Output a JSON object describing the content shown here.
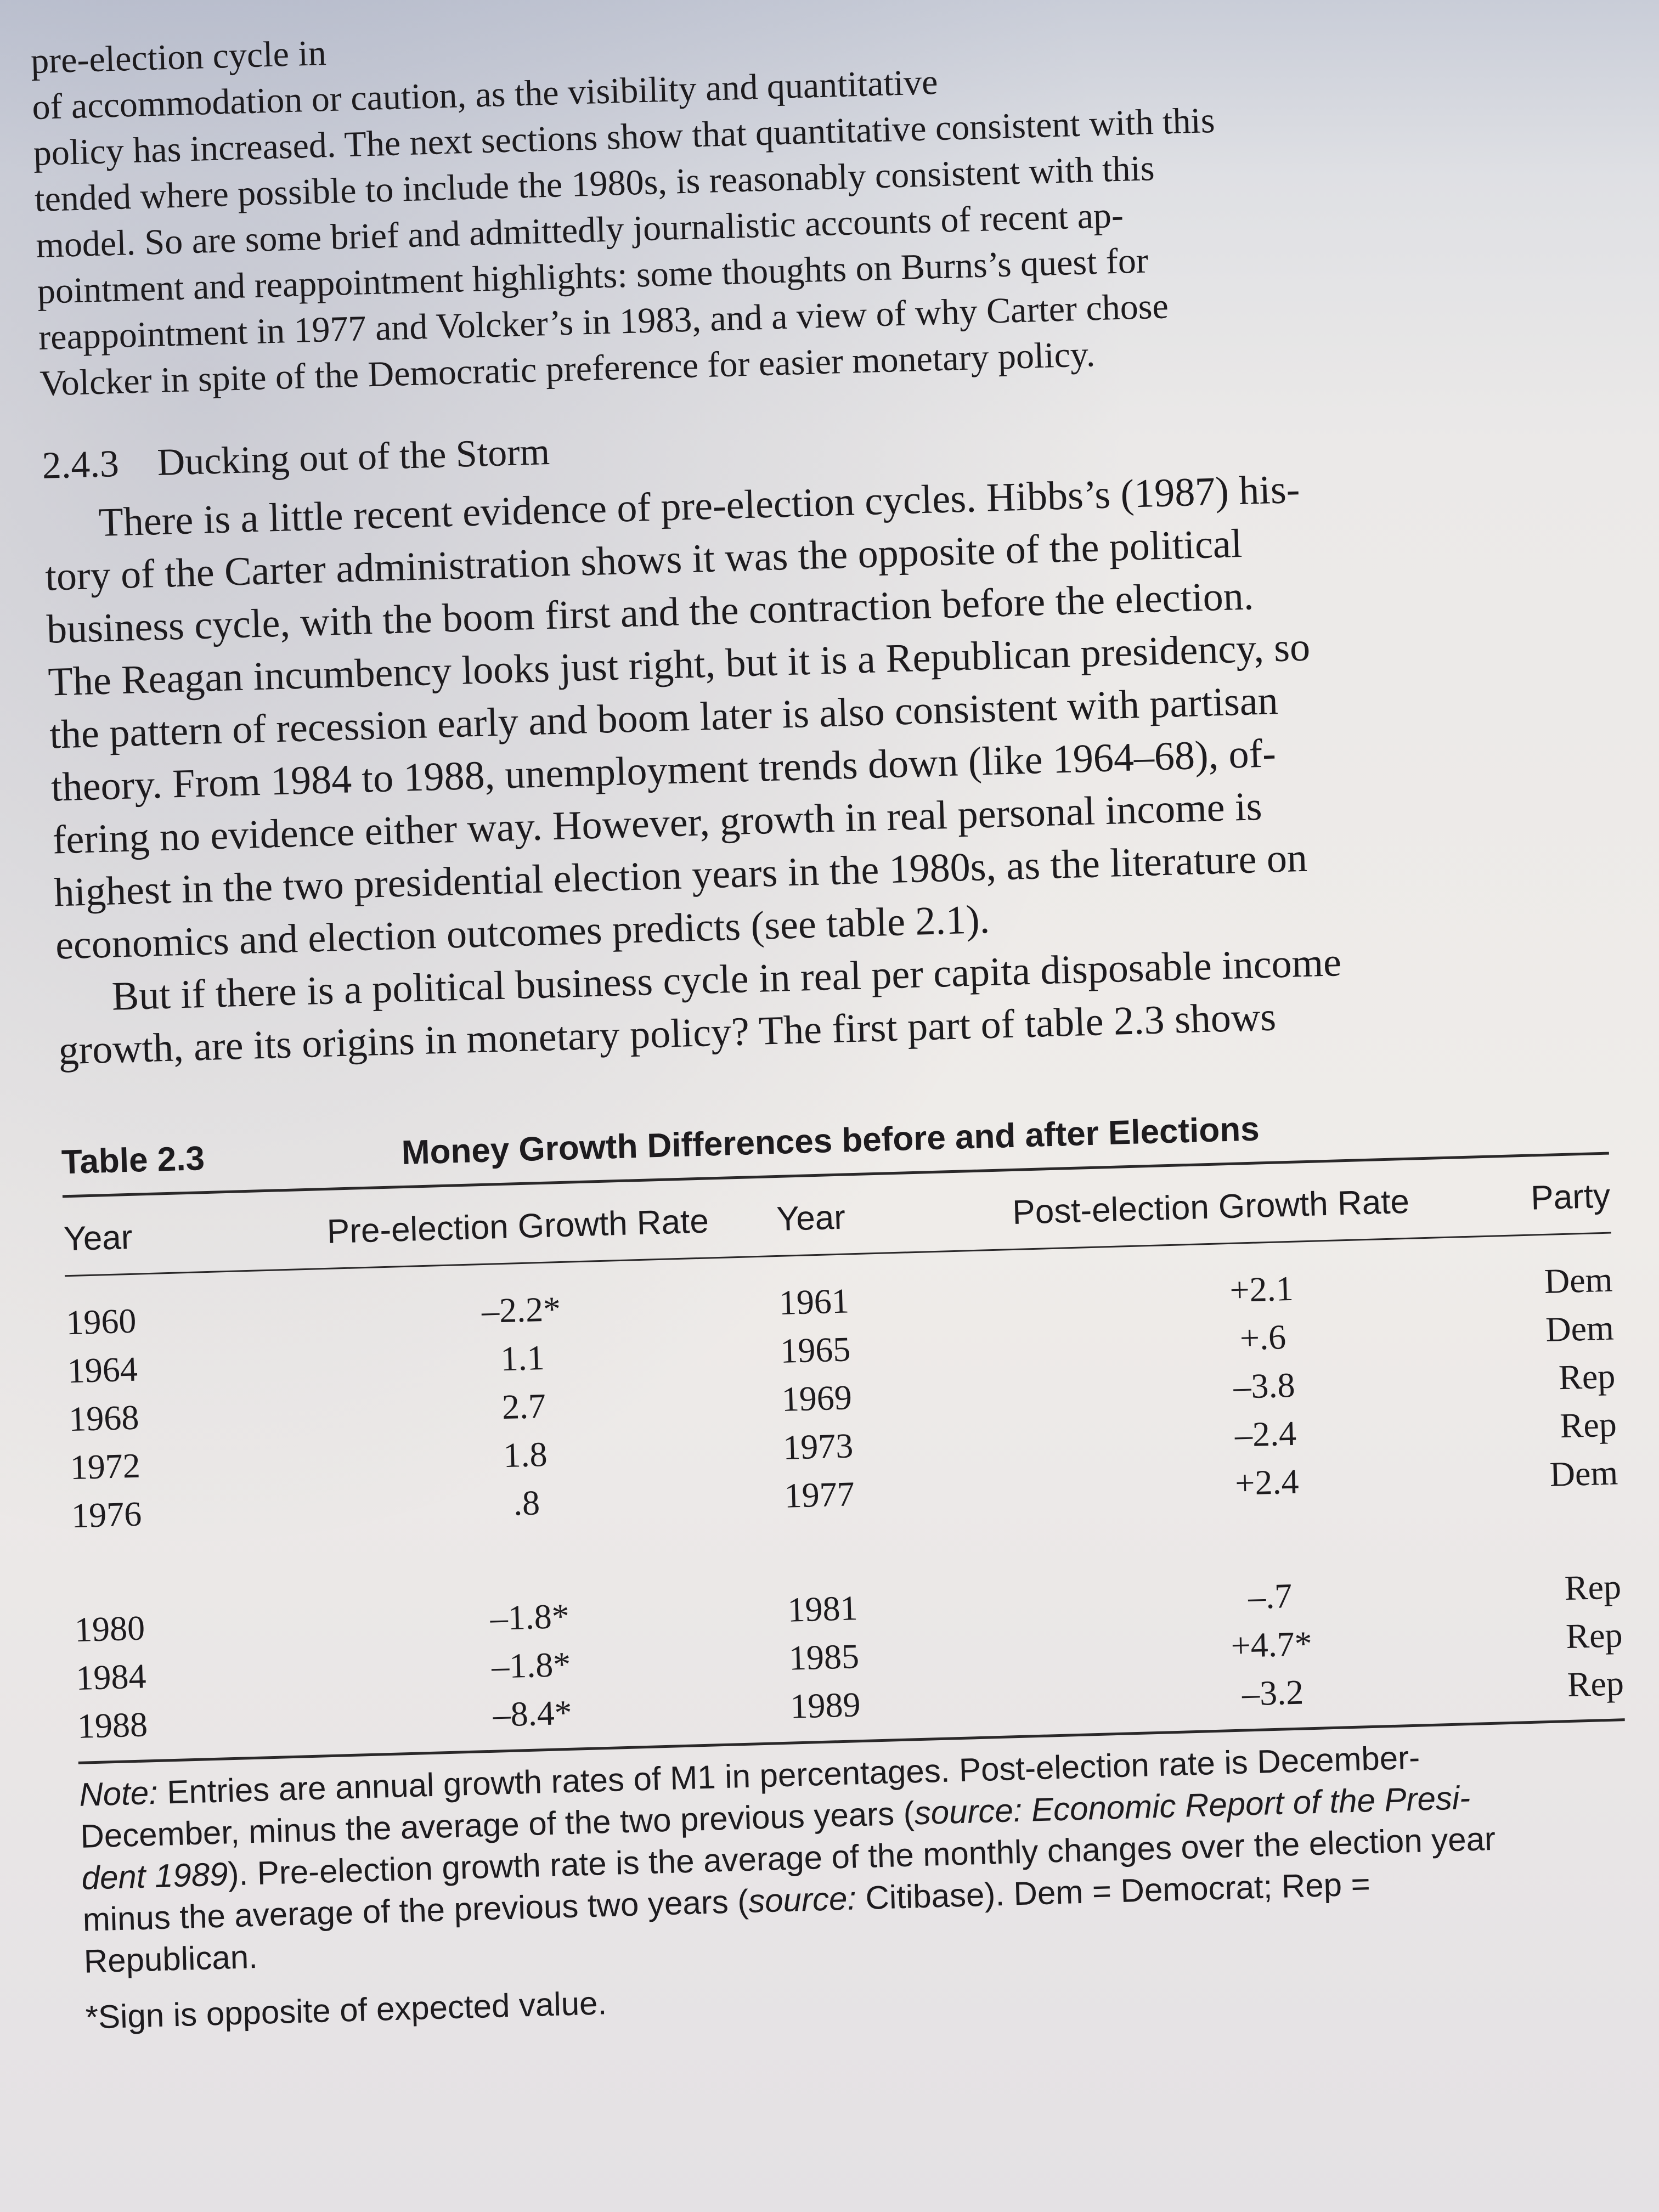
{
  "intro_lines": [
    "pre-election cycle in",
    "of accommodation or caution, as the visibility and quantitative",
    "policy has increased. The next sections show that quantitative consistent with this",
    "tended where possible to include the 1980s, is reasonably consistent with this",
    "model. So are some brief and admittedly journalistic accounts of recent ap-",
    "pointment and reappointment highlights: some thoughts on Burns’s quest for",
    "reappointment in 1977 and Volcker’s in 1983, and a view of why Carter chose",
    "Volcker in spite of the Democratic preference for easier monetary policy."
  ],
  "section": {
    "number": "2.4.3",
    "title": "Ducking out of the Storm"
  },
  "paragraph1_lines": [
    "There is a little recent evidence of pre-election cycles. Hibbs’s (1987) his-",
    "tory of the Carter administration shows it was the opposite of the political",
    "business cycle, with the boom first and the contraction before the election.",
    "The Reagan incumbency looks just right, but it is a Republican presidency, so",
    "the pattern of recession early and boom later is also consistent with partisan",
    "theory. From 1984 to 1988, unemployment trends down (like 1964–68), of-",
    "fering no evidence either way. However, growth in real personal income is",
    "highest in the two presidential election years in the 1980s, as the literature on",
    "economics and election outcomes predicts (see table 2.1)."
  ],
  "paragraph2_lines": [
    "But if there is a political business cycle in real per capita disposable income",
    "growth, are its origins in monetary policy? The first part of table 2.3 shows"
  ],
  "table": {
    "label": "Table 2.3",
    "title": "Money Growth Differences before and after Elections",
    "headers": [
      "Year",
      "Pre-election Growth Rate",
      "Year",
      "Post-election Growth Rate",
      "Party"
    ],
    "group1": [
      {
        "year": "1960",
        "pre": "–2.2*",
        "post_year": "1961",
        "post": "+2.1",
        "party": "Dem"
      },
      {
        "year": "1964",
        "pre": "1.1",
        "post_year": "1965",
        "post": "+.6",
        "party": "Dem"
      },
      {
        "year": "1968",
        "pre": "2.7",
        "post_year": "1969",
        "post": "–3.8",
        "party": "Rep"
      },
      {
        "year": "1972",
        "pre": "1.8",
        "post_year": "1973",
        "post": "–2.4",
        "party": "Rep"
      },
      {
        "year": "1976",
        "pre": ".8",
        "post_year": "1977",
        "post": "+2.4",
        "party": "Dem"
      }
    ],
    "group2": [
      {
        "year": "1980",
        "pre": "–1.8*",
        "post_year": "1981",
        "post": "–.7",
        "party": "Rep"
      },
      {
        "year": "1984",
        "pre": "–1.8*",
        "post_year": "1985",
        "post": "+4.7*",
        "party": "Rep"
      },
      {
        "year": "1988",
        "pre": "–8.4*",
        "post_year": "1989",
        "post": "–3.2",
        "party": "Rep"
      }
    ]
  },
  "note": {
    "label": "Note:",
    "line1": "Entries are annual growth rates of M1 in percentages. Post-election rate is December-",
    "line2a": "December, minus the average of the two previous years (",
    "source_word_1": "source: Economic Report of the Presi-",
    "line3a": "dent 1989",
    "line3b": "). Pre-election growth rate is the average of the monthly changes over the election year",
    "line4a": "minus the average of the previous two years (",
    "source_word_2": "source:",
    "line4b": " Citibase). Dem = Democrat; Rep =",
    "line5": "Republican.",
    "footnote": "*Sign is opposite of expected value."
  }
}
